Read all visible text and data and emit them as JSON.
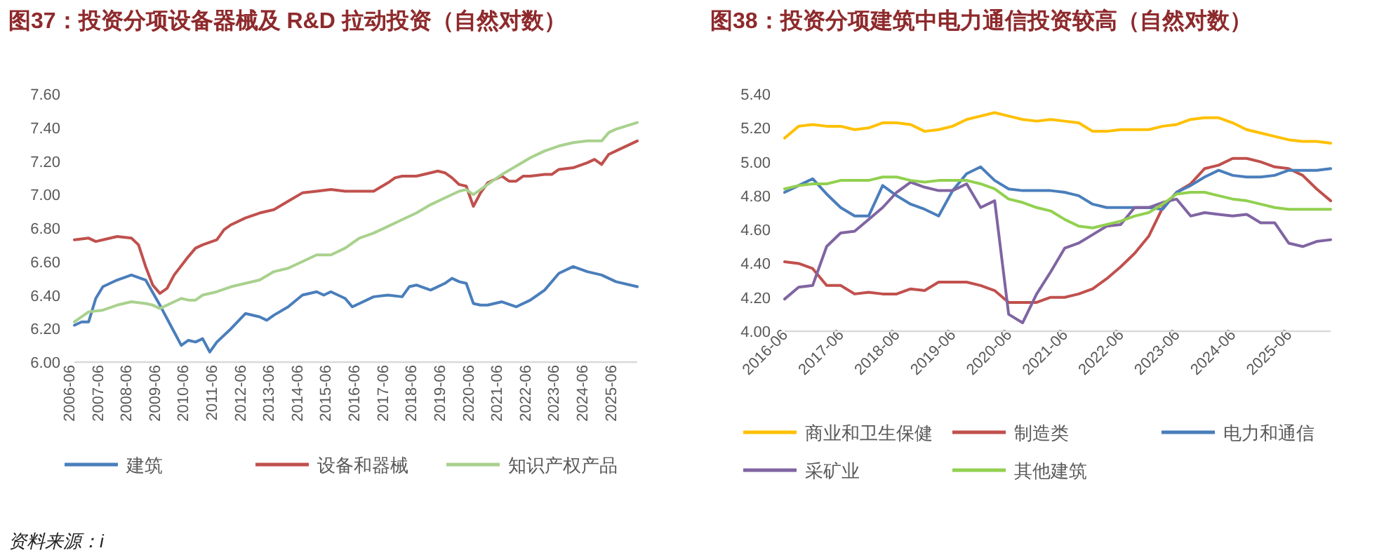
{
  "chart_data": [
    {
      "type": "line",
      "title": "图37：投资分项设备器械及 R&D 拉动投资（自然对数）",
      "xlim": [
        "2006-06",
        "2026-03"
      ],
      "xticks": [
        "2006-06",
        "2007-06",
        "2008-06",
        "2009-06",
        "2010-06",
        "2011-06",
        "2012-06",
        "2013-06",
        "2014-06",
        "2015-06",
        "2016-06",
        "2017-06",
        "2018-06",
        "2019-06",
        "2020-06",
        "2021-06",
        "2022-06",
        "2023-06",
        "2024-06",
        "2025-06"
      ],
      "ylim": [
        6.0,
        7.6
      ],
      "yticks": [
        {
          "value": 6.0,
          "label": "6.00"
        },
        {
          "value": 6.2,
          "label": "6.20"
        },
        {
          "value": 6.4,
          "label": "6.40"
        },
        {
          "value": 6.6,
          "label": "6.60"
        },
        {
          "value": 6.8,
          "label": "6.80"
        },
        {
          "value": 7.0,
          "label": "7.00"
        },
        {
          "value": 7.2,
          "label": "7.20"
        },
        {
          "value": 7.4,
          "label": "7.40"
        },
        {
          "value": 7.6,
          "label": "7.60"
        }
      ],
      "legend": "bottom",
      "grid": false,
      "series": [
        {
          "name": "建筑",
          "color": "#4a7ebb",
          "x": [
            "2006-06",
            "2006-09",
            "2006-12",
            "2007-03",
            "2007-06",
            "2007-12",
            "2008-06",
            "2008-12",
            "2009-06",
            "2009-12",
            "2010-03",
            "2010-06",
            "2010-09",
            "2010-12",
            "2011-03",
            "2011-06",
            "2011-12",
            "2012-06",
            "2012-12",
            "2013-03",
            "2013-06",
            "2013-12",
            "2014-06",
            "2014-12",
            "2015-03",
            "2015-06",
            "2015-12",
            "2016-03",
            "2016-06",
            "2016-12",
            "2017-06",
            "2017-12",
            "2018-03",
            "2018-06",
            "2018-12",
            "2019-06",
            "2019-09",
            "2019-12",
            "2020-03",
            "2020-06",
            "2020-09",
            "2020-12",
            "2021-06",
            "2021-12",
            "2022-06",
            "2022-12",
            "2023-06",
            "2023-12",
            "2024-06",
            "2024-12",
            "2025-06",
            "2026-03"
          ],
          "values": [
            6.22,
            6.24,
            6.24,
            6.38,
            6.45,
            6.49,
            6.52,
            6.49,
            6.34,
            6.18,
            6.1,
            6.13,
            6.12,
            6.14,
            6.06,
            6.12,
            6.2,
            6.29,
            6.27,
            6.25,
            6.28,
            6.33,
            6.4,
            6.42,
            6.4,
            6.42,
            6.38,
            6.33,
            6.35,
            6.39,
            6.4,
            6.39,
            6.45,
            6.46,
            6.43,
            6.47,
            6.5,
            6.48,
            6.47,
            6.35,
            6.34,
            6.34,
            6.36,
            6.33,
            6.37,
            6.43,
            6.53,
            6.57,
            6.54,
            6.52,
            6.48,
            6.45
          ]
        },
        {
          "name": "设备和器械",
          "color": "#c0504d",
          "x": [
            "2006-06",
            "2006-12",
            "2007-03",
            "2007-06",
            "2007-12",
            "2008-06",
            "2008-09",
            "2008-12",
            "2009-03",
            "2009-06",
            "2009-09",
            "2009-12",
            "2010-06",
            "2010-09",
            "2010-12",
            "2011-06",
            "2011-09",
            "2011-12",
            "2012-06",
            "2012-12",
            "2013-06",
            "2013-12",
            "2014-06",
            "2014-12",
            "2015-06",
            "2015-12",
            "2016-06",
            "2016-12",
            "2017-06",
            "2017-09",
            "2017-12",
            "2018-06",
            "2018-12",
            "2019-03",
            "2019-06",
            "2019-09",
            "2019-12",
            "2020-03",
            "2020-06",
            "2020-09",
            "2020-12",
            "2021-03",
            "2021-06",
            "2021-09",
            "2021-12",
            "2022-03",
            "2022-06",
            "2022-12",
            "2023-03",
            "2023-06",
            "2023-12",
            "2024-06",
            "2024-09",
            "2024-12",
            "2025-03",
            "2025-06",
            "2025-09",
            "2026-03"
          ],
          "values": [
            6.73,
            6.74,
            6.72,
            6.73,
            6.75,
            6.74,
            6.7,
            6.57,
            6.46,
            6.41,
            6.44,
            6.52,
            6.63,
            6.68,
            6.7,
            6.73,
            6.79,
            6.82,
            6.86,
            6.89,
            6.91,
            6.96,
            7.01,
            7.02,
            7.03,
            7.02,
            7.02,
            7.02,
            7.07,
            7.1,
            7.11,
            7.11,
            7.13,
            7.14,
            7.13,
            7.1,
            7.06,
            7.05,
            6.93,
            7.01,
            7.07,
            7.09,
            7.11,
            7.08,
            7.08,
            7.11,
            7.11,
            7.12,
            7.12,
            7.15,
            7.16,
            7.19,
            7.21,
            7.18,
            7.24,
            7.26,
            7.28,
            7.32
          ]
        },
        {
          "name": "知识产权产品",
          "color": "#a9d18e",
          "x": [
            "2006-06",
            "2006-12",
            "2007-06",
            "2007-12",
            "2008-06",
            "2008-12",
            "2009-03",
            "2009-06",
            "2009-12",
            "2010-03",
            "2010-06",
            "2010-09",
            "2010-12",
            "2011-06",
            "2011-12",
            "2012-06",
            "2012-12",
            "2013-06",
            "2013-12",
            "2014-06",
            "2014-12",
            "2015-06",
            "2015-12",
            "2016-06",
            "2016-12",
            "2017-06",
            "2017-12",
            "2018-06",
            "2018-12",
            "2019-06",
            "2019-12",
            "2020-03",
            "2020-06",
            "2020-12",
            "2021-06",
            "2021-12",
            "2022-06",
            "2022-12",
            "2023-06",
            "2023-12",
            "2024-06",
            "2024-12",
            "2025-03",
            "2025-06",
            "2026-03"
          ],
          "values": [
            6.24,
            6.3,
            6.31,
            6.34,
            6.36,
            6.35,
            6.34,
            6.32,
            6.36,
            6.38,
            6.37,
            6.37,
            6.4,
            6.42,
            6.45,
            6.47,
            6.49,
            6.54,
            6.56,
            6.6,
            6.64,
            6.64,
            6.68,
            6.74,
            6.77,
            6.81,
            6.85,
            6.89,
            6.94,
            6.98,
            7.02,
            7.03,
            7.0,
            7.06,
            7.12,
            7.17,
            7.22,
            7.26,
            7.29,
            7.31,
            7.32,
            7.32,
            7.37,
            7.39,
            7.43
          ]
        }
      ],
      "annotations": [
        "资料来源：i"
      ]
    },
    {
      "type": "line",
      "title": "图38：投资分项建筑中电力通信投资较高（自然对数）",
      "x": [
        "2016-06",
        "2016-09",
        "2016-12",
        "2017-03",
        "2017-06",
        "2017-09",
        "2017-12",
        "2018-03",
        "2018-06",
        "2018-09",
        "2018-12",
        "2019-03",
        "2019-06",
        "2019-09",
        "2019-12",
        "2020-03",
        "2020-06",
        "2020-09",
        "2020-12",
        "2021-03",
        "2021-06",
        "2021-09",
        "2021-12",
        "2022-03",
        "2022-06",
        "2022-09",
        "2022-12",
        "2023-03",
        "2023-06",
        "2023-09",
        "2023-12",
        "2024-03",
        "2024-06",
        "2024-09",
        "2024-12",
        "2025-03",
        "2025-06",
        "2025-09",
        "2025-12",
        "2026-03"
      ],
      "xlim": [
        "2016-06",
        "2026-03"
      ],
      "xticks": [
        "2016-06",
        "2017-06",
        "2018-06",
        "2019-06",
        "2020-06",
        "2021-06",
        "2022-06",
        "2023-06",
        "2024-06",
        "2025-06"
      ],
      "ylim": [
        4.0,
        5.4
      ],
      "yticks": [
        {
          "value": 4.0,
          "label": "4.00"
        },
        {
          "value": 4.2,
          "label": "4.20"
        },
        {
          "value": 4.4,
          "label": "4.40"
        },
        {
          "value": 4.6,
          "label": "4.60"
        },
        {
          "value": 4.8,
          "label": "4.80"
        },
        {
          "value": 5.0,
          "label": "5.00"
        },
        {
          "value": 5.2,
          "label": "5.20"
        },
        {
          "value": 5.4,
          "label": "5.40"
        }
      ],
      "legend": "bottom",
      "grid": false,
      "series": [
        {
          "name": "商业和卫生保健",
          "color": "#ffc000",
          "values": [
            5.14,
            5.21,
            5.22,
            5.21,
            5.21,
            5.19,
            5.2,
            5.23,
            5.23,
            5.22,
            5.18,
            5.19,
            5.21,
            5.25,
            5.27,
            5.29,
            5.27,
            5.25,
            5.24,
            5.25,
            5.24,
            5.23,
            5.18,
            5.18,
            5.19,
            5.19,
            5.19,
            5.21,
            5.22,
            5.25,
            5.26,
            5.26,
            5.23,
            5.19,
            5.17,
            5.15,
            5.13,
            5.12,
            5.12,
            5.11
          ]
        },
        {
          "name": "制造类",
          "color": "#c0504d",
          "values": [
            4.41,
            4.4,
            4.37,
            4.27,
            4.27,
            4.22,
            4.23,
            4.22,
            4.22,
            4.25,
            4.24,
            4.29,
            4.29,
            4.29,
            4.27,
            4.24,
            4.17,
            4.17,
            4.17,
            4.2,
            4.2,
            4.22,
            4.25,
            4.31,
            4.38,
            4.46,
            4.56,
            4.73,
            4.82,
            4.87,
            4.96,
            4.98,
            5.02,
            5.02,
            5.0,
            4.97,
            4.96,
            4.92,
            4.84,
            4.77
          ]
        },
        {
          "name": "电力和通信",
          "color": "#4a7ebb",
          "values": [
            4.82,
            4.86,
            4.9,
            4.81,
            4.73,
            4.68,
            4.68,
            4.86,
            4.8,
            4.75,
            4.72,
            4.68,
            4.83,
            4.93,
            4.97,
            4.89,
            4.84,
            4.83,
            4.83,
            4.83,
            4.82,
            4.8,
            4.75,
            4.73,
            4.73,
            4.73,
            4.73,
            4.72,
            4.82,
            4.86,
            4.91,
            4.95,
            4.92,
            4.91,
            4.91,
            4.92,
            4.95,
            4.95,
            4.95,
            4.96
          ]
        },
        {
          "name": "采矿业",
          "color": "#8064a2",
          "values": [
            4.19,
            4.26,
            4.27,
            4.5,
            4.58,
            4.59,
            4.66,
            4.73,
            4.82,
            4.88,
            4.85,
            4.83,
            4.83,
            4.87,
            4.73,
            4.77,
            4.1,
            4.05,
            4.22,
            4.35,
            4.49,
            4.52,
            4.57,
            4.62,
            4.63,
            4.73,
            4.73,
            4.76,
            4.78,
            4.68,
            4.7,
            4.69,
            4.68,
            4.69,
            4.64,
            4.64,
            4.52,
            4.5,
            4.53,
            4.54
          ]
        },
        {
          "name": "其他建筑",
          "color": "#92d050",
          "values": [
            4.84,
            4.86,
            4.87,
            4.87,
            4.89,
            4.89,
            4.89,
            4.91,
            4.91,
            4.89,
            4.88,
            4.89,
            4.89,
            4.89,
            4.87,
            4.84,
            4.78,
            4.76,
            4.73,
            4.71,
            4.66,
            4.62,
            4.61,
            4.63,
            4.65,
            4.68,
            4.7,
            4.75,
            4.81,
            4.82,
            4.82,
            4.8,
            4.78,
            4.77,
            4.75,
            4.73,
            4.72,
            4.72,
            4.72,
            4.72
          ]
        }
      ]
    }
  ]
}
